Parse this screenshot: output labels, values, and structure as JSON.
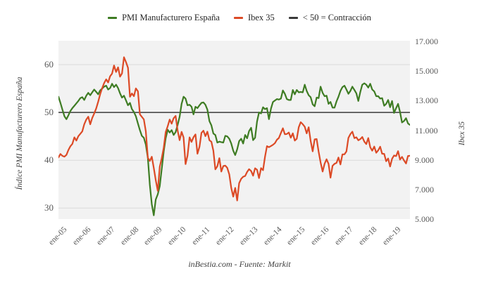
{
  "figure": {
    "legend": [
      {
        "label": "PMI Manufacturero España",
        "color": "#3e7c23"
      },
      {
        "label": "Ibex 35",
        "color": "#dc4a26"
      },
      {
        "label": "< 50 = Contracción",
        "color": "#3a3a3a"
      }
    ],
    "footer": "inBestia.com - Fuente: Markit"
  },
  "chart_data": {
    "type": "line",
    "title": "",
    "plot_bg": "#f2f2f2",
    "grid_color": "#dadada",
    "grid": "horizontal-only",
    "legend_position": "top-center",
    "x_frequency": "monthly",
    "x_start_label": "ene-05",
    "x_tick_labels": [
      "ene-05",
      "ene-06",
      "ene-07",
      "ene-08",
      "ene-09",
      "ene-10",
      "ene-11",
      "ene-12",
      "ene-13",
      "ene-14",
      "ene-15",
      "ene-16",
      "ene-17",
      "ene-18",
      "ene-19"
    ],
    "left_axis": {
      "title": "Índice PMI Manufacturero España",
      "tick_labels": [
        "60",
        "50",
        "40",
        "30"
      ],
      "tick_values": [
        60,
        50,
        40,
        30
      ],
      "range": [
        27.7,
        65.0
      ]
    },
    "right_axis": {
      "title": "Ibex 35",
      "tick_labels": [
        "17.000",
        "15.000",
        "13.000",
        "11.000",
        "9.000",
        "7.000",
        "5.000"
      ],
      "tick_values": [
        17000,
        15000,
        13000,
        11000,
        9000,
        7000,
        5000
      ],
      "range": [
        5000,
        17000
      ]
    },
    "reference_line": {
      "label": "< 50 = Contracción",
      "axis": "left",
      "value": 50,
      "color": "#3a3a3a"
    },
    "series": [
      {
        "name": "PMI Manufacturero España",
        "axis": "left",
        "color": "#3e7c23",
        "values": [
          53.3,
          52.0,
          50.6,
          49.2,
          48.6,
          49.4,
          50.3,
          50.9,
          51.4,
          51.9,
          52.4,
          53.0,
          53.2,
          52.6,
          53.5,
          54.1,
          53.6,
          54.2,
          54.8,
          54.3,
          53.8,
          54.6,
          55.0,
          55.4,
          55.6,
          54.8,
          55.1,
          56.0,
          55.3,
          55.8,
          55.1,
          54.0,
          53.1,
          53.5,
          52.5,
          51.5,
          52.0,
          50.7,
          50.1,
          49.2,
          47.7,
          46.3,
          45.1,
          44.7,
          43.3,
          40.5,
          34.9,
          30.8,
          28.5,
          31.8,
          32.9,
          34.6,
          38.2,
          41.8,
          44.6,
          46.4,
          45.8,
          46.3,
          45.3,
          45.9,
          47.4,
          49.1,
          51.8,
          53.3,
          52.9,
          51.5,
          51.6,
          51.2,
          49.6,
          51.2,
          50.9,
          51.5,
          52.0,
          52.1,
          51.6,
          50.6,
          48.2,
          47.3,
          45.6,
          45.3,
          43.7,
          43.9,
          43.8,
          43.7,
          45.1,
          45.0,
          44.5,
          43.5,
          42.0,
          41.1,
          42.3,
          44.0,
          44.5,
          43.5,
          45.3,
          44.6,
          46.1,
          46.8,
          44.2,
          44.7,
          48.1,
          50.0,
          49.8,
          51.1,
          50.7,
          50.9,
          48.6,
          50.8,
          52.2,
          52.5,
          52.8,
          52.7,
          52.9,
          54.6,
          53.9,
          52.8,
          52.6,
          52.6,
          54.7,
          53.8,
          54.7,
          54.2,
          54.3,
          54.2,
          55.8,
          54.5,
          53.6,
          53.2,
          51.7,
          51.3,
          53.1,
          53.0,
          55.4,
          54.1,
          53.4,
          53.5,
          51.8,
          52.2,
          51.0,
          51.0,
          52.3,
          53.3,
          54.5,
          55.3,
          55.6,
          54.8,
          53.9,
          54.5,
          55.4,
          54.7,
          54.0,
          52.4,
          54.3,
          55.8,
          56.1,
          55.8,
          55.2,
          56.0,
          54.8,
          54.4,
          53.4,
          53.4,
          52.9,
          53.0,
          51.4,
          51.8,
          52.6,
          51.1,
          52.4,
          49.9,
          50.9,
          51.8,
          50.1,
          47.9,
          48.2,
          48.8,
          47.7,
          47.4
        ]
      },
      {
        "name": "Ibex 35",
        "axis": "right",
        "color": "#dc4a26",
        "values": [
          9150,
          9380,
          9250,
          9200,
          9320,
          9650,
          9900,
          10060,
          10500,
          10280,
          10580,
          10734,
          10900,
          11380,
          11700,
          11890,
          11380,
          11800,
          12100,
          12450,
          12900,
          13400,
          13800,
          14146,
          14400,
          14190,
          14610,
          14790,
          15330,
          14900,
          15210,
          14580,
          14800,
          15890,
          15560,
          15182,
          13230,
          13450,
          13270,
          13790,
          13600,
          12050,
          11880,
          11710,
          10910,
          9120,
          8910,
          9195,
          8450,
          7620,
          6900,
          8520,
          9100,
          9790,
          10855,
          11250,
          11700,
          11420,
          11790,
          11940,
          10950,
          10310,
          10870,
          10490,
          8700,
          9260,
          10500,
          10190,
          10510,
          10700,
          9400,
          9860,
          10800,
          10950,
          10580,
          10880,
          10300,
          10200,
          9600,
          8350,
          8550,
          9100,
          8200,
          8566,
          8600,
          8450,
          8010,
          7100,
          6510,
          7100,
          6250,
          7420,
          7710,
          7850,
          7900,
          8168,
          8360,
          8230,
          7920,
          8420,
          8320,
          7760,
          8430,
          8290,
          9190,
          9910,
          9840,
          9916,
          10000,
          10114,
          10340,
          10459,
          10798,
          11110,
          10707,
          10728,
          10826,
          10477,
          10770,
          10280,
          10403,
          11178,
          11521,
          11385,
          11217,
          10770,
          11180,
          10259,
          9560,
          10360,
          10386,
          9544,
          8816,
          8200,
          8723,
          9025,
          8717,
          7788,
          8587,
          8717,
          8780,
          9143,
          8677,
          9352,
          9361,
          9556,
          10463,
          10716,
          10880,
          10445,
          10502,
          10299,
          10382,
          10523,
          10212,
          10044,
          10451,
          9840,
          9600,
          9880,
          9465,
          9623,
          9871,
          9399,
          9389,
          8893,
          9077,
          8540,
          9056,
          9278,
          9240,
          9570,
          9004,
          9186,
          8950,
          8740,
          9245,
          9260
        ]
      }
    ]
  }
}
